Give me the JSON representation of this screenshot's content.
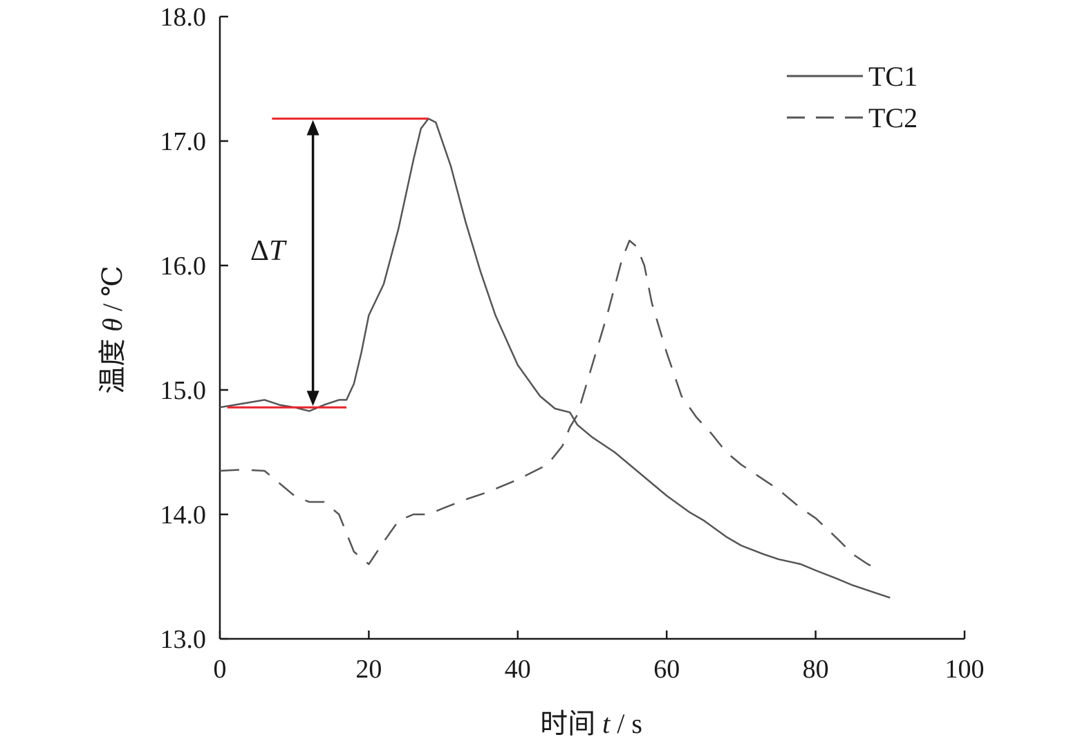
{
  "chart_data": {
    "type": "line",
    "title": "",
    "xlabel": {
      "prefix": "时间 ",
      "var": "t",
      "suffix": " / s"
    },
    "ylabel": {
      "prefix": "温度 ",
      "var": "θ",
      "suffix": " / ℃"
    },
    "xlim": [
      0,
      100
    ],
    "ylim": [
      13.0,
      18.0
    ],
    "xticks": [
      "0",
      "20",
      "40",
      "60",
      "80",
      "100"
    ],
    "yticks": [
      "13.0",
      "14.0",
      "15.0",
      "16.0",
      "17.0",
      "18.0"
    ],
    "grid": false,
    "legend_position": "top-right",
    "colors": {
      "axis": "#1a1a1a",
      "TC1": "#555555",
      "TC2": "#555555",
      "marker": "#e8242c",
      "arrow": "#111111"
    },
    "series": [
      {
        "name": "TC1",
        "style": "solid",
        "points": [
          [
            0,
            14.86
          ],
          [
            2,
            14.88
          ],
          [
            4,
            14.9
          ],
          [
            6,
            14.92
          ],
          [
            8,
            14.88
          ],
          [
            10,
            14.86
          ],
          [
            12,
            14.83
          ],
          [
            14,
            14.88
          ],
          [
            16,
            14.92
          ],
          [
            17,
            14.92
          ],
          [
            18,
            15.05
          ],
          [
            19,
            15.3
          ],
          [
            20,
            15.6
          ],
          [
            22,
            15.85
          ],
          [
            24,
            16.3
          ],
          [
            26,
            16.85
          ],
          [
            27,
            17.1
          ],
          [
            28,
            17.18
          ],
          [
            29,
            17.15
          ],
          [
            31,
            16.8
          ],
          [
            33,
            16.35
          ],
          [
            35,
            15.95
          ],
          [
            37,
            15.6
          ],
          [
            40,
            15.2
          ],
          [
            43,
            14.95
          ],
          [
            45,
            14.85
          ],
          [
            47,
            14.82
          ],
          [
            48,
            14.72
          ],
          [
            50,
            14.62
          ],
          [
            53,
            14.5
          ],
          [
            55,
            14.4
          ],
          [
            58,
            14.25
          ],
          [
            60,
            14.15
          ],
          [
            63,
            14.02
          ],
          [
            65,
            13.95
          ],
          [
            68,
            13.82
          ],
          [
            70,
            13.75
          ],
          [
            73,
            13.68
          ],
          [
            75,
            13.64
          ],
          [
            78,
            13.6
          ],
          [
            80,
            13.55
          ],
          [
            83,
            13.48
          ],
          [
            85,
            13.43
          ],
          [
            88,
            13.37
          ],
          [
            90,
            13.33
          ]
        ]
      },
      {
        "name": "TC2",
        "style": "dashed",
        "points": [
          [
            0,
            14.35
          ],
          [
            3,
            14.36
          ],
          [
            6,
            14.35
          ],
          [
            8,
            14.25
          ],
          [
            10,
            14.15
          ],
          [
            12,
            14.1
          ],
          [
            14,
            14.1
          ],
          [
            16,
            14.0
          ],
          [
            18,
            13.7
          ],
          [
            20,
            13.6
          ],
          [
            22,
            13.78
          ],
          [
            24,
            13.95
          ],
          [
            26,
            14.0
          ],
          [
            28,
            14.0
          ],
          [
            30,
            14.05
          ],
          [
            33,
            14.12
          ],
          [
            36,
            14.18
          ],
          [
            40,
            14.28
          ],
          [
            44,
            14.4
          ],
          [
            46,
            14.55
          ],
          [
            47,
            14.7
          ],
          [
            48,
            14.8
          ],
          [
            50,
            15.2
          ],
          [
            52,
            15.6
          ],
          [
            54,
            16.05
          ],
          [
            55,
            16.2
          ],
          [
            56,
            16.15
          ],
          [
            57,
            16.0
          ],
          [
            58,
            15.7
          ],
          [
            60,
            15.3
          ],
          [
            62,
            14.95
          ],
          [
            64,
            14.78
          ],
          [
            66,
            14.65
          ],
          [
            68,
            14.5
          ],
          [
            70,
            14.4
          ],
          [
            72,
            14.32
          ],
          [
            75,
            14.2
          ],
          [
            78,
            14.05
          ],
          [
            80,
            13.97
          ],
          [
            83,
            13.8
          ],
          [
            85,
            13.68
          ],
          [
            87,
            13.6
          ],
          [
            88,
            13.57
          ]
        ]
      }
    ],
    "annotations": {
      "delta_label": {
        "prefix": "Δ",
        "var": "T"
      },
      "upper_level": 17.18,
      "lower_level": 14.86,
      "upper_line_x": [
        7,
        28
      ],
      "lower_line_x": [
        1,
        17
      ],
      "arrow_x": 12.5
    }
  }
}
